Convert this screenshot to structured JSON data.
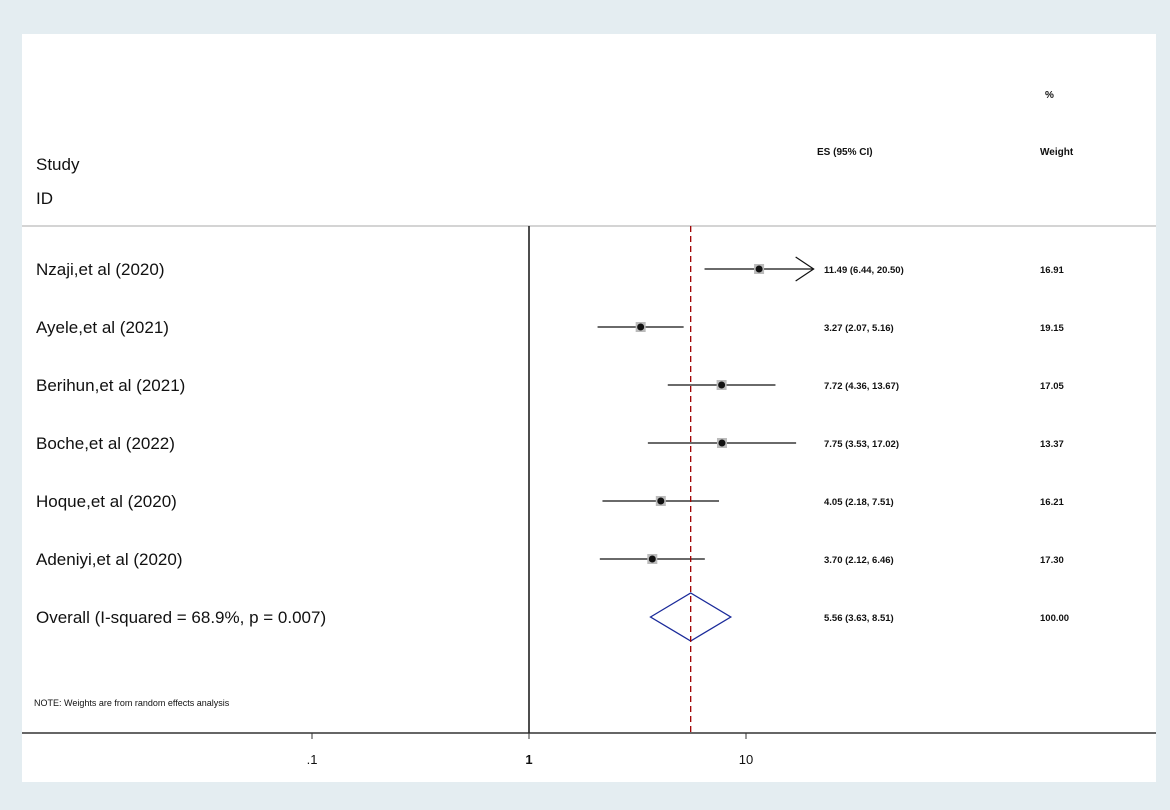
{
  "chart_data": {
    "type": "forest",
    "headers": {
      "study": "Study",
      "id": "ID",
      "es": "ES (95% CI)",
      "weight_top": "%",
      "weight": "Weight"
    },
    "studies": [
      {
        "label": "Nzaji,et al (2020)",
        "es": 11.49,
        "lo": 6.44,
        "hi": 20.5,
        "es_text": "11.49 (6.44, 20.50)",
        "weight": "16.91",
        "arrow": true
      },
      {
        "label": "Ayele,et al (2021)",
        "es": 3.27,
        "lo": 2.07,
        "hi": 5.16,
        "es_text": "3.27 (2.07, 5.16)",
        "weight": "19.15"
      },
      {
        "label": "Berihun,et al (2021)",
        "es": 7.72,
        "lo": 4.36,
        "hi": 13.67,
        "es_text": "7.72 (4.36, 13.67)",
        "weight": "17.05"
      },
      {
        "label": "Boche,et al (2022)",
        "es": 7.75,
        "lo": 3.53,
        "hi": 17.02,
        "es_text": "7.75 (3.53, 17.02)",
        "weight": "13.37"
      },
      {
        "label": "Hoque,et al (2020)",
        "es": 4.05,
        "lo": 2.18,
        "hi": 7.51,
        "es_text": "4.05 (2.18, 7.51)",
        "weight": "16.21"
      },
      {
        "label": "Adeniyi,et al (2020)",
        "es": 3.7,
        "lo": 2.12,
        "hi": 6.46,
        "es_text": "3.70 (2.12, 6.46)",
        "weight": "17.30"
      }
    ],
    "overall": {
      "label": "Overall  (I-squared = 68.9%, p = 0.007)",
      "es": 5.56,
      "lo": 3.63,
      "hi": 8.51,
      "es_text": "5.56 (3.63, 8.51)",
      "weight": "100.00"
    },
    "note": "NOTE: Weights are from random effects analysis",
    "x_axis": {
      "scale": "log",
      "ticks": [
        {
          "value": 0.1,
          "label": ".1"
        },
        {
          "value": 1,
          "label": "1"
        },
        {
          "value": 10,
          "label": "10"
        }
      ]
    },
    "null_line": 1,
    "colors": {
      "marker": "#111111",
      "overall_line": "#a00000",
      "diamond": "#1a2a9a"
    }
  }
}
